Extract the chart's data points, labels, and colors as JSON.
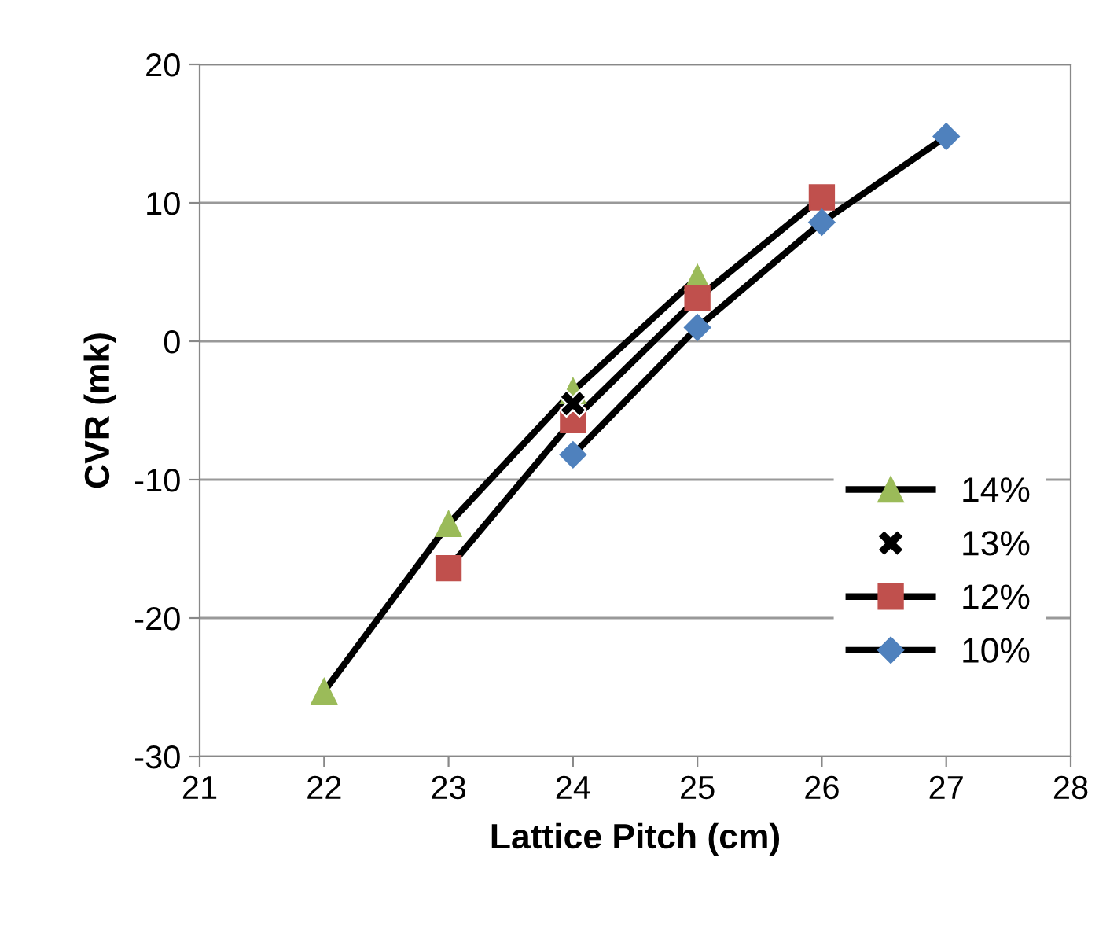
{
  "chart_data": {
    "type": "line",
    "xlabel": "Lattice Pitch (cm)",
    "ylabel": "CVR (mk)",
    "xlim": [
      21,
      28
    ],
    "xticks": [
      21,
      22,
      23,
      24,
      25,
      26,
      27,
      28
    ],
    "ylim": [
      -30,
      20
    ],
    "yticks": [
      -30,
      -20,
      -10,
      0,
      10,
      20
    ],
    "grid": "y",
    "legend": "right",
    "series": [
      {
        "name": "14%",
        "color": "#9bbb59",
        "marker": "triangle",
        "x": [
          22,
          23,
          24,
          25
        ],
        "values": [
          -25.3,
          -13.2,
          -3.6,
          4.6
        ]
      },
      {
        "name": "13%",
        "type": "scatter",
        "color": "#000000",
        "marker": "cross",
        "x": [
          24
        ],
        "values": [
          -4.5
        ]
      },
      {
        "name": "12%",
        "color": "#c0504d",
        "marker": "square",
        "x": [
          23,
          24,
          25,
          26
        ],
        "values": [
          -16.4,
          -5.7,
          3.1,
          10.4
        ]
      },
      {
        "name": "10%",
        "color": "#4f81bd",
        "marker": "diamond",
        "x": [
          24,
          25,
          26,
          27
        ],
        "values": [
          -8.2,
          1.0,
          8.6,
          14.8
        ]
      }
    ]
  }
}
